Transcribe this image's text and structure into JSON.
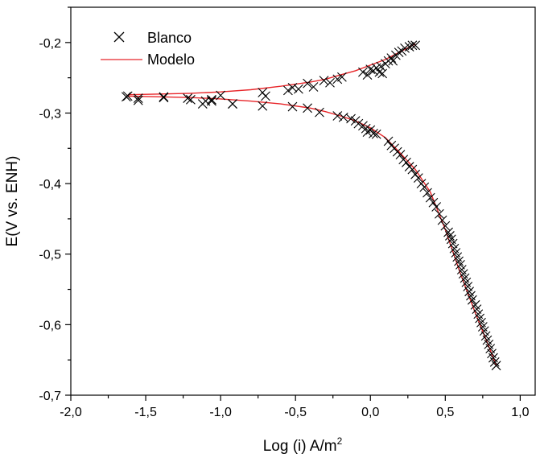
{
  "chart_data": {
    "type": "scatter",
    "xlabel_main": "Log (i) A/m",
    "xlabel_sup": "2",
    "ylabel": "E(V vs. ENH)",
    "xlim": [
      -2.0,
      1.1
    ],
    "ylim": [
      -0.7,
      -0.15
    ],
    "xticks": [
      -2.0,
      -1.5,
      -1.0,
      -0.5,
      0.0,
      0.5,
      1.0
    ],
    "xtick_labels": [
      "-2,0",
      "-1,5",
      "-1,0",
      "-0,5",
      "0,0",
      "0,5",
      "1,0"
    ],
    "yticks": [
      -0.7,
      -0.6,
      -0.5,
      -0.4,
      -0.3,
      -0.2
    ],
    "ytick_labels": [
      "-0,7",
      "-0,6",
      "-0,5",
      "-0,4",
      "-0,3",
      "-0,2"
    ],
    "grid": false,
    "legend_position": "top-left",
    "legend": [
      {
        "label": "Blanco",
        "marker": "x",
        "color": "#000000"
      },
      {
        "label": "Modelo",
        "marker": "line",
        "color": "#e8262a"
      }
    ],
    "series": [
      {
        "name": "Blanco",
        "kind": "scatter",
        "color": "#000000",
        "x": [
          -1.63,
          -1.55,
          -1.38,
          -1.22,
          -1.1,
          -1.06,
          -1.0,
          -0.92,
          -0.72,
          -0.7,
          -0.55,
          -0.52,
          -0.48,
          -0.42,
          -0.38,
          -0.31,
          -0.27,
          -0.22,
          -0.19,
          -0.05,
          -0.02,
          0.0,
          0.02,
          0.04,
          0.06,
          0.07,
          0.08,
          0.1,
          0.12,
          0.14,
          0.15,
          0.17,
          0.19,
          0.21,
          0.23,
          0.26,
          0.28,
          0.3,
          -1.62,
          -1.55,
          -1.38,
          -1.2,
          -1.12,
          -1.06,
          -0.92,
          -0.72,
          -0.52,
          -0.42,
          -0.34,
          -0.22,
          -0.18,
          -0.13,
          -0.1,
          -0.08,
          -0.05,
          -0.03,
          -0.02,
          0.0,
          0.02,
          0.04,
          0.12,
          0.14,
          0.16,
          0.18,
          0.2,
          0.22,
          0.24,
          0.26,
          0.28,
          0.3,
          0.32,
          0.34,
          0.36,
          0.38,
          0.4,
          0.42,
          0.44,
          0.46,
          0.48,
          0.5,
          0.52,
          0.53,
          0.54,
          0.55,
          0.56,
          0.57,
          0.58,
          0.59,
          0.6,
          0.61,
          0.62,
          0.63,
          0.64,
          0.65,
          0.66,
          0.67,
          0.68,
          0.7,
          0.71,
          0.72,
          0.73,
          0.74,
          0.75,
          0.76,
          0.77,
          0.78,
          0.79,
          0.8,
          0.81,
          0.82,
          0.83,
          0.84
        ],
        "y": [
          -0.277,
          -0.279,
          -0.277,
          -0.279,
          -0.283,
          -0.281,
          -0.275,
          -0.287,
          -0.271,
          -0.276,
          -0.268,
          -0.264,
          -0.266,
          -0.258,
          -0.263,
          -0.254,
          -0.257,
          -0.252,
          -0.249,
          -0.242,
          -0.246,
          -0.238,
          -0.24,
          -0.236,
          -0.242,
          -0.234,
          -0.244,
          -0.23,
          -0.226,
          -0.222,
          -0.226,
          -0.218,
          -0.214,
          -0.212,
          -0.208,
          -0.206,
          -0.204,
          -0.204,
          -0.276,
          -0.282,
          -0.278,
          -0.281,
          -0.287,
          -0.283,
          -0.287,
          -0.29,
          -0.291,
          -0.293,
          -0.299,
          -0.304,
          -0.306,
          -0.308,
          -0.311,
          -0.315,
          -0.318,
          -0.322,
          -0.327,
          -0.324,
          -0.329,
          -0.33,
          -0.34,
          -0.346,
          -0.35,
          -0.355,
          -0.359,
          -0.366,
          -0.37,
          -0.376,
          -0.38,
          -0.387,
          -0.392,
          -0.4,
          -0.405,
          -0.413,
          -0.42,
          -0.427,
          -0.433,
          -0.443,
          -0.452,
          -0.46,
          -0.469,
          -0.474,
          -0.479,
          -0.485,
          -0.492,
          -0.498,
          -0.504,
          -0.51,
          -0.515,
          -0.522,
          -0.528,
          -0.534,
          -0.54,
          -0.546,
          -0.553,
          -0.559,
          -0.565,
          -0.572,
          -0.578,
          -0.585,
          -0.591,
          -0.597,
          -0.603,
          -0.609,
          -0.616,
          -0.622,
          -0.628,
          -0.634,
          -0.641,
          -0.647,
          -0.653,
          -0.658
        ]
      },
      {
        "name": "Modelo",
        "kind": "line",
        "color": "#e8262a",
        "branches": [
          {
            "x": [
              -1.62,
              -1.4,
              -1.2,
              -1.0,
              -0.8,
              -0.6,
              -0.4,
              -0.3,
              -0.2,
              -0.1,
              0.0,
              0.1,
              0.2,
              0.3
            ],
            "y": [
              -0.274,
              -0.273,
              -0.272,
              -0.27,
              -0.267,
              -0.262,
              -0.256,
              -0.252,
              -0.246,
              -0.24,
              -0.232,
              -0.224,
              -0.213,
              -0.202
            ]
          },
          {
            "x": [
              -1.62,
              -1.4,
              -1.2,
              -1.0,
              -0.8,
              -0.6,
              -0.4,
              -0.3,
              -0.2,
              -0.1,
              0.0,
              0.1,
              0.2,
              0.3,
              0.4,
              0.5,
              0.6,
              0.7,
              0.8,
              0.84
            ],
            "y": [
              -0.276,
              -0.277,
              -0.278,
              -0.28,
              -0.283,
              -0.287,
              -0.293,
              -0.298,
              -0.304,
              -0.311,
              -0.321,
              -0.335,
              -0.357,
              -0.38,
              -0.412,
              -0.465,
              -0.527,
              -0.583,
              -0.636,
              -0.658
            ]
          }
        ]
      }
    ]
  }
}
